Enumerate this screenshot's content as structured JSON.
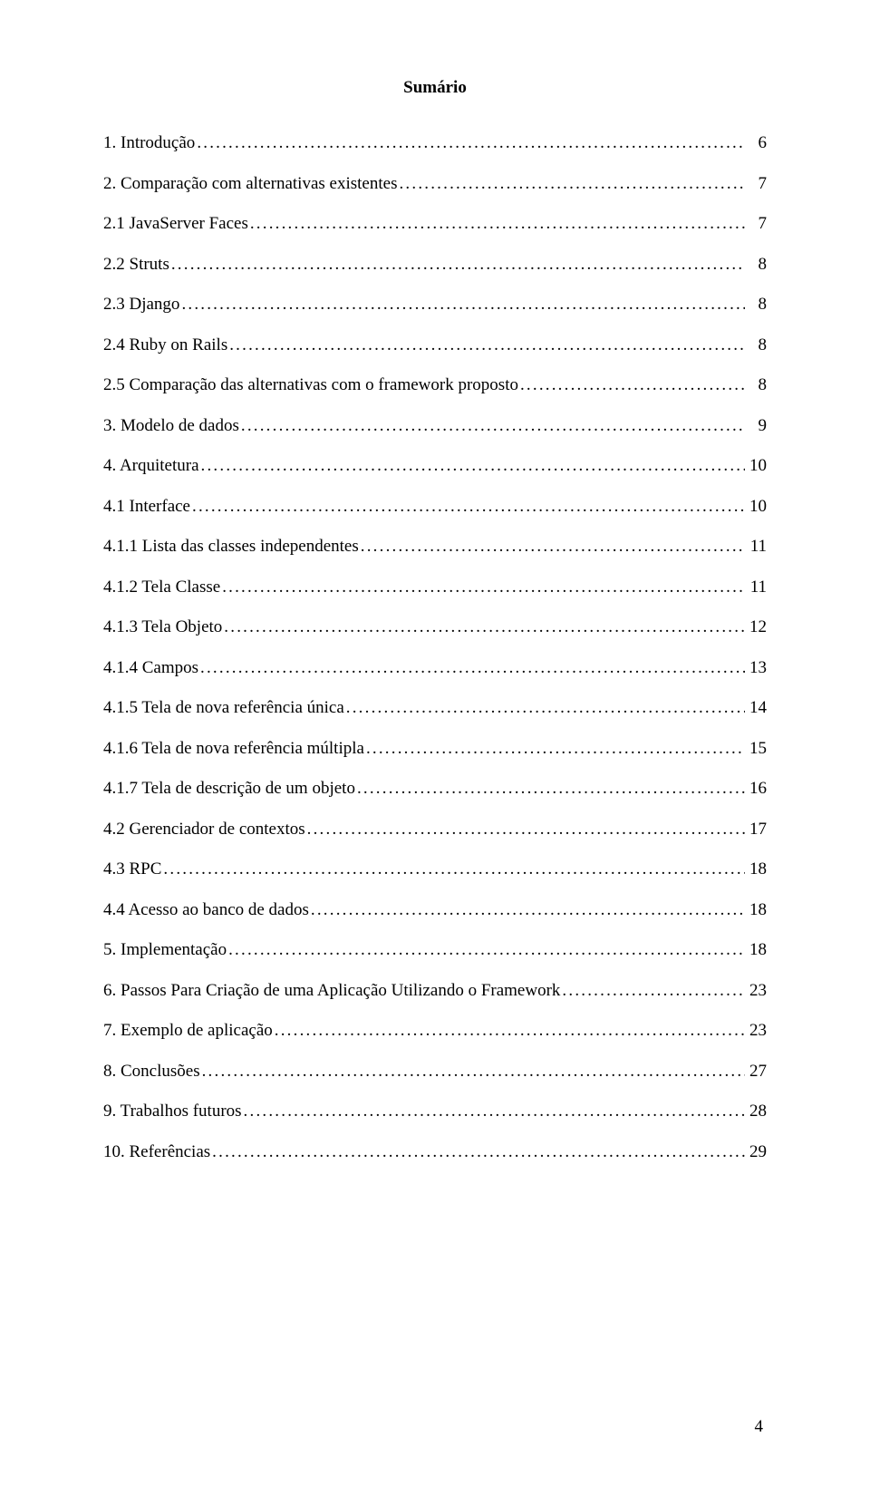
{
  "title": "Sumário",
  "page_number": "4",
  "typography": {
    "font_family": "Times New Roman",
    "title_fontsize_pt": 14,
    "body_fontsize_pt": 14,
    "title_fontweight": "bold",
    "text_color": "#000000",
    "background_color": "#ffffff"
  },
  "toc": [
    {
      "label": "1. Introdução",
      "page": "6",
      "indent": 0
    },
    {
      "label": "2. Comparação com alternativas existentes",
      "page": "7",
      "indent": 0
    },
    {
      "label": "2.1 JavaServer Faces",
      "page": "7",
      "indent": 0
    },
    {
      "label": "2.2 Struts",
      "page": "8",
      "indent": 0
    },
    {
      "label": "2.3 Django",
      "page": "8",
      "indent": 0
    },
    {
      "label": "2.4 Ruby on Rails",
      "page": "8",
      "indent": 0
    },
    {
      "label": "2.5 Comparação das alternativas com o framework proposto",
      "page": "8",
      "indent": 0
    },
    {
      "label": "3. Modelo de dados",
      "page": "9",
      "indent": 0
    },
    {
      "label": "4. Arquitetura",
      "page": "10",
      "indent": 0
    },
    {
      "label": "4.1 Interface",
      "page": "10",
      "indent": 0
    },
    {
      "label": "4.1.1 Lista das classes independentes",
      "page": "11",
      "indent": 0
    },
    {
      "label": "4.1.2 Tela Classe",
      "page": "11",
      "indent": 0
    },
    {
      "label": "4.1.3 Tela Objeto",
      "page": "12",
      "indent": 0
    },
    {
      "label": "4.1.4 Campos",
      "page": "13",
      "indent": 0
    },
    {
      "label": "4.1.5 Tela de nova referência única",
      "page": "14",
      "indent": 0
    },
    {
      "label": "4.1.6 Tela de nova referência múltipla",
      "page": "15",
      "indent": 0
    },
    {
      "label": "4.1.7 Tela de descrição de um objeto",
      "page": "16",
      "indent": 0
    },
    {
      "label": "4.2 Gerenciador de contextos",
      "page": "17",
      "indent": 0
    },
    {
      "label": "4.3 RPC",
      "page": "18",
      "indent": 0
    },
    {
      "label": "4.4 Acesso ao banco de dados",
      "page": "18",
      "indent": 0
    },
    {
      "label": "5. Implementação",
      "page": "18",
      "indent": 0
    },
    {
      "label": "6. Passos Para Criação de uma Aplicação Utilizando o Framework",
      "page": "23",
      "indent": 0
    },
    {
      "label": "7. Exemplo de aplicação",
      "page": "23",
      "indent": 0
    },
    {
      "label": "8. Conclusões",
      "page": "27",
      "indent": 0
    },
    {
      "label": "9. Trabalhos futuros",
      "page": "28",
      "indent": 0
    },
    {
      "label": "10. Referências",
      "page": "29",
      "indent": 0
    }
  ]
}
